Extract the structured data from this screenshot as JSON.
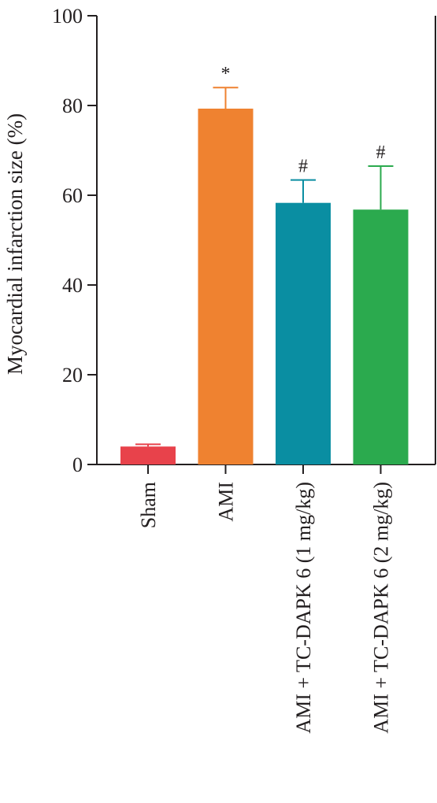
{
  "chart_data": {
    "type": "bar",
    "ylabel": "Myocardial infarction size (%)",
    "ylim": [
      0,
      100
    ],
    "yticks": [
      "0",
      "20",
      "40",
      "60",
      "80",
      "100"
    ],
    "categories": [
      "Sham",
      "AMI",
      "AMI + TC-DAPK 6 (1 mg/kg)",
      "AMI + TC-DAPK 6 (2 mg/kg)"
    ],
    "values": [
      4,
      79.3,
      58.3,
      56.8
    ],
    "errors": [
      0.5,
      4.7,
      5.1,
      9.7
    ],
    "significance": [
      "",
      "*",
      "#",
      "#"
    ],
    "colors": [
      "#e8424b",
      "#ef8230",
      "#0a8ea2",
      "#2baa4e"
    ],
    "grid": false
  }
}
